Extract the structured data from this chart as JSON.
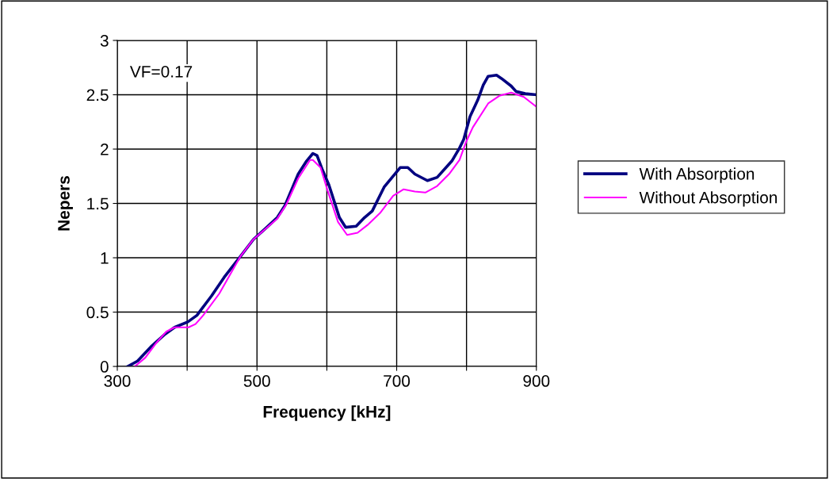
{
  "chart_data": {
    "type": "line",
    "xlabel": "Frequency [kHz]",
    "ylabel": "Nepers",
    "annotations": [
      "VF=0.17"
    ],
    "xlim": [
      300,
      900
    ],
    "xticks": [
      300,
      {
        "value": 400,
        "label": null
      },
      500,
      {
        "value": 600,
        "label": null
      },
      700,
      {
        "value": 800,
        "label": null
      },
      900
    ],
    "ylim": [
      0,
      3
    ],
    "yticks": [
      0,
      0.5,
      1,
      1.5,
      2,
      2.5,
      3
    ],
    "grid": true,
    "legend": "right",
    "marker": "none",
    "line_style": "solid",
    "series": [
      {
        "name": "With Absorption",
        "color": "#000080",
        "x": [
          315,
          329,
          348,
          367,
          382,
          401,
          414,
          435,
          453,
          476,
          495,
          514,
          529,
          540,
          559,
          571,
          580,
          586,
          593,
          603,
          618,
          627,
          642,
          654,
          665,
          682,
          705,
          716,
          726,
          744,
          758,
          779,
          790,
          796,
          805,
          816,
          824,
          831,
          843,
          850,
          864,
          871,
          884,
          900
        ],
        "values": [
          0,
          0.05,
          0.18,
          0.29,
          0.36,
          0.41,
          0.47,
          0.65,
          0.82,
          1.01,
          1.17,
          1.28,
          1.37,
          1.48,
          1.77,
          1.89,
          1.96,
          1.94,
          1.82,
          1.67,
          1.37,
          1.28,
          1.29,
          1.37,
          1.43,
          1.65,
          1.83,
          1.83,
          1.77,
          1.71,
          1.74,
          1.89,
          2.01,
          2.09,
          2.3,
          2.45,
          2.59,
          2.67,
          2.68,
          2.65,
          2.58,
          2.53,
          2.51,
          2.5
        ]
      },
      {
        "name": "Without Absorption",
        "color": "#ff00ff",
        "x": [
          325,
          340,
          355,
          370,
          382,
          402,
          412,
          423,
          446,
          476,
          495,
          529,
          542,
          559,
          576,
          580,
          591,
          601,
          616,
          629,
          644,
          658,
          676,
          695,
          710,
          726,
          741,
          758,
          775,
          790,
          799,
          809,
          831,
          847,
          864,
          882,
          900
        ],
        "values": [
          0,
          0.08,
          0.21,
          0.32,
          0.36,
          0.36,
          0.39,
          0.47,
          0.67,
          1.01,
          1.17,
          1.36,
          1.49,
          1.73,
          1.9,
          1.9,
          1.83,
          1.62,
          1.33,
          1.21,
          1.23,
          1.3,
          1.41,
          1.57,
          1.63,
          1.61,
          1.6,
          1.66,
          1.77,
          1.9,
          2.06,
          2.2,
          2.42,
          2.49,
          2.52,
          2.48,
          2.39
        ]
      }
    ]
  }
}
